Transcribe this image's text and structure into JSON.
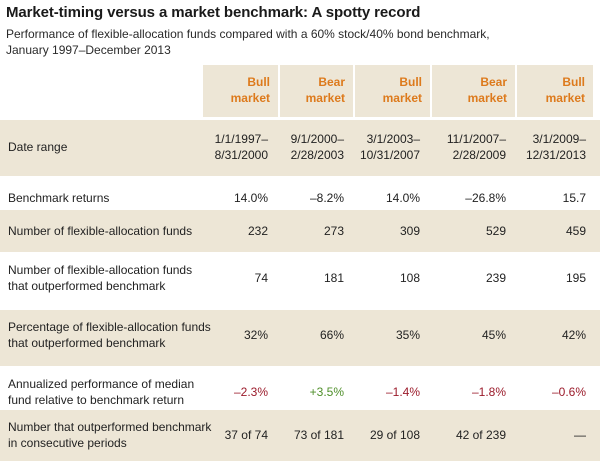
{
  "title": "Market-timing versus a market benchmark: A spotty record",
  "subtitle_line1": "Performance of flexible-allocation funds compared with a 60% stock/40% bond benchmark,",
  "subtitle_line2": "January 1997–December 2013",
  "columns": [
    {
      "line1": "Bull",
      "line2": "market"
    },
    {
      "line1": "Bear",
      "line2": "market"
    },
    {
      "line1": "Bull",
      "line2": "market"
    },
    {
      "line1": "Bear",
      "line2": "market"
    },
    {
      "line1": "Bull",
      "line2": "market"
    }
  ],
  "rows": [
    {
      "label_line1": "Date range",
      "label_line2": "",
      "cells": [
        {
          "line1": "1/1/1997–",
          "line2": "8/31/2000"
        },
        {
          "line1": "9/1/2000–",
          "line2": "2/28/2003"
        },
        {
          "line1": "3/1/2003–",
          "line2": "10/31/2007"
        },
        {
          "line1": "11/1/2007–",
          "line2": "2/28/2009"
        },
        {
          "line1": "3/1/2009–",
          "line2": "12/31/2013"
        }
      ]
    },
    {
      "label_line1": "Benchmark returns",
      "label_line2": "",
      "cells": [
        "14.0%",
        "–8.2%",
        "14.0%",
        "–26.8%",
        "15.7"
      ]
    },
    {
      "label_line1": "Number of flexible-allocation funds",
      "label_line2": "",
      "cells": [
        "232",
        "273",
        "309",
        "529",
        "459"
      ]
    },
    {
      "label_line1": "Number of flexible-allocation funds",
      "label_line2": "that outperformed benchmark",
      "cells": [
        "74",
        "181",
        "108",
        "239",
        "195"
      ]
    },
    {
      "label_line1": "Percentage of flexible-allocation funds",
      "label_line2": "that outperformed benchmark",
      "cells": [
        "32%",
        "66%",
        "35%",
        "45%",
        "42%"
      ]
    },
    {
      "label_line1": "Annualized performance of median",
      "label_line2": "fund relative to benchmark return",
      "cells": [
        "–2.3%",
        "+3.5%",
        "–1.4%",
        "–1.8%",
        "–0.6%"
      ]
    },
    {
      "label_line1": "Number that outperformed benchmark",
      "label_line2": "in consecutive periods",
      "cells": [
        "37 of 74",
        "73 of 181",
        "29 of 108",
        "42 of 239",
        "—"
      ]
    }
  ],
  "colors": {
    "header_text": "#dd7a1c",
    "shade": "#ede6d6",
    "negative": "#9b1b2b",
    "positive": "#4f8f2a"
  }
}
